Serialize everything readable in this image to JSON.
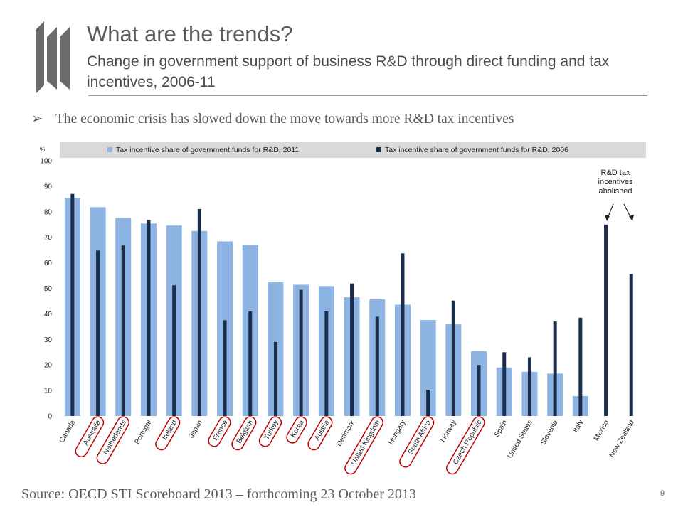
{
  "slide": {
    "title": "What are the trends?",
    "subtitle": "Change in government support of business R&D through direct funding and tax incentives, 2006-11",
    "bullet": "The economic crisis has slowed down the move towards more R&D tax incentives",
    "source": "Source: OECD STI Scoreboard 2013 – forthcoming 23 October 2013",
    "page_number": "9"
  },
  "colors": {
    "series_2011": "#8db4e2",
    "series_2006": "#1a2e4c",
    "plot_background": "#ffffff",
    "legend_background": "#d9d9d9",
    "highlight_circle": "#c00000",
    "logo": "#6b6b6b"
  },
  "chart_data": {
    "type": "bar",
    "y_unit_label": "%",
    "ylim": [
      0,
      100
    ],
    "yticks": [
      0,
      10,
      20,
      30,
      40,
      50,
      60,
      70,
      80,
      90,
      100
    ],
    "grid": false,
    "legend_position": "top",
    "categories": [
      "Canada",
      "Australia",
      "Netherlands",
      "Portugal",
      "Ireland",
      "Japan",
      "France",
      "Belgium",
      "Turkey",
      "Korea",
      "Austria",
      "Denmark",
      "United Kingdom",
      "Hungary",
      "South Africa",
      "Norway",
      "Czech Republic",
      "Spain",
      "United States",
      "Slovenia",
      "Italy",
      "Mexico",
      "New Zealand"
    ],
    "highlighted_categories": [
      "Australia",
      "Netherlands",
      "Ireland",
      "France",
      "Belgium",
      "Turkey",
      "Korea",
      "Austria",
      "United Kingdom",
      "South Africa",
      "Czech Republic"
    ],
    "series": [
      {
        "name": "Tax incentive share of government funds for R&D, 2011",
        "values": [
          85.5,
          81.8,
          77.6,
          75.4,
          74.6,
          72.5,
          68.4,
          67.0,
          52.4,
          51.4,
          50.9,
          46.5,
          45.7,
          43.6,
          37.6,
          35.9,
          25.4,
          19.0,
          17.3,
          16.6,
          7.8,
          null,
          null
        ]
      },
      {
        "name": "Tax incentive share of government funds for R&D, 2006",
        "values": [
          87.0,
          64.8,
          66.8,
          76.8,
          51.2,
          81.1,
          37.5,
          41.0,
          29.0,
          49.4,
          41.0,
          51.9,
          38.9,
          63.7,
          10.3,
          45.2,
          20.0,
          25.0,
          23.0,
          37.0,
          38.5,
          75.0,
          55.6
        ]
      }
    ],
    "annotations": [
      "R&D tax incentives abolished"
    ]
  }
}
